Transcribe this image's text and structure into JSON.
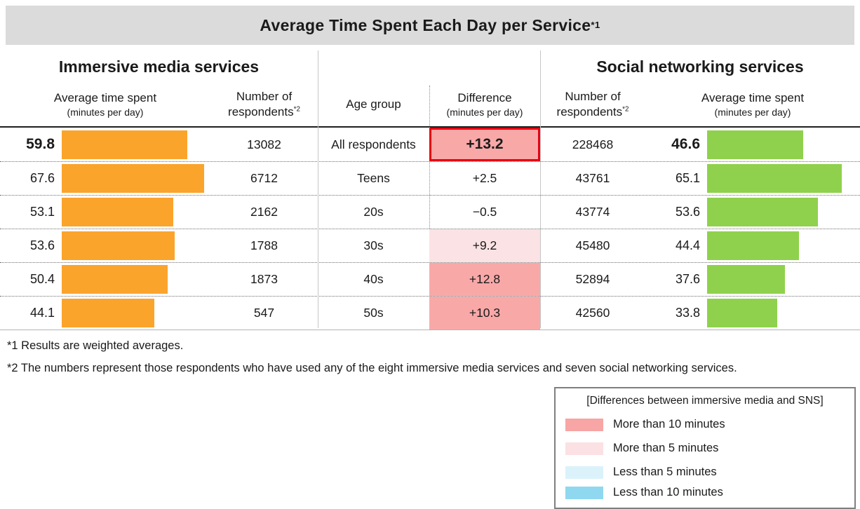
{
  "title": {
    "text": "Average Time Spent Each Day per Service",
    "superscript": "*1"
  },
  "colors": {
    "title_bar_bg": "#DBDBDB",
    "immersive_bar": "#FBA42C",
    "sns_bar": "#8FD14C",
    "diff_strong_bg": "#F9A8A8",
    "diff_light_bg": "#FBE2E4",
    "highlight_border": "#E60012"
  },
  "table": {
    "left_group_title": "Immersive media services",
    "right_group_title": "Social networking services",
    "headers": {
      "immersive_time": {
        "line1": "Average time spent",
        "line2": "(minutes per day)"
      },
      "immersive_respondents": {
        "line1": "Number of",
        "line2": "respondents",
        "sup": "*2"
      },
      "age_group": "Age group",
      "difference": {
        "line1": "Difference",
        "line2": "(minutes per day)"
      },
      "sns_respondents": {
        "line1": "Number of",
        "line2": "respondents",
        "sup": "*2"
      },
      "sns_time": {
        "line1": "Average time spent",
        "line2": "(minutes per day)"
      }
    },
    "rows": [
      {
        "age": "All respondents",
        "immersive_time": "59.8",
        "immersive_respondents": "13082",
        "difference": "+13.2",
        "difference_level": "strong",
        "difference_highlighted": true,
        "sns_respondents": "228468",
        "sns_time": "46.6",
        "emphasis": true
      },
      {
        "age": "Teens",
        "immersive_time": "67.6",
        "immersive_respondents": "6712",
        "difference": "+2.5",
        "difference_level": "none",
        "difference_highlighted": false,
        "sns_respondents": "43761",
        "sns_time": "65.1",
        "emphasis": false
      },
      {
        "age": "20s",
        "immersive_time": "53.1",
        "immersive_respondents": "2162",
        "difference": "−0.5",
        "difference_level": "none",
        "difference_highlighted": false,
        "sns_respondents": "43774",
        "sns_time": "53.6",
        "emphasis": false
      },
      {
        "age": "30s",
        "immersive_time": "53.6",
        "immersive_respondents": "1788",
        "difference": "+9.2",
        "difference_level": "light",
        "difference_highlighted": false,
        "sns_respondents": "45480",
        "sns_time": "44.4",
        "emphasis": false
      },
      {
        "age": "40s",
        "immersive_time": "50.4",
        "immersive_respondents": "1873",
        "difference": "+12.8",
        "difference_level": "strong",
        "difference_highlighted": false,
        "sns_respondents": "52894",
        "sns_time": "37.6",
        "emphasis": false
      },
      {
        "age": "50s",
        "immersive_time": "44.1",
        "immersive_respondents": "547",
        "difference": "+10.3",
        "difference_level": "strong",
        "difference_highlighted": false,
        "sns_respondents": "42560",
        "sns_time": "33.8",
        "emphasis": false
      }
    ]
  },
  "footnotes": [
    "*1 Results are weighted averages.",
    "*2 The numbers represent those respondents who have used any of the eight immersive media services and seven social networking services."
  ],
  "legend": {
    "title": "[Differences between immersive media and SNS]",
    "items": [
      {
        "label": "More than 10 minutes",
        "color": "#F7A5A5"
      },
      {
        "label": "More than 5 minutes",
        "color": "#FBE1E4"
      },
      {
        "label": "Less than 5 minutes",
        "color": "#DBF2FB"
      },
      {
        "label": "Less than 10 minutes",
        "color": "#8FD8EF"
      }
    ]
  },
  "chart_data": {
    "type": "bar",
    "title": "Average Time Spent Each Day per Service (weighted averages)",
    "categories": [
      "All respondents",
      "Teens",
      "20s",
      "30s",
      "40s",
      "50s"
    ],
    "series": [
      {
        "name": "Immersive media services – Average time spent (minutes per day)",
        "values": [
          59.8,
          67.6,
          53.1,
          53.6,
          50.4,
          44.1
        ]
      },
      {
        "name": "Immersive media services – Number of respondents",
        "values": [
          13082,
          6712,
          2162,
          1788,
          1873,
          547
        ]
      },
      {
        "name": "Difference (minutes per day)",
        "values": [
          13.2,
          2.5,
          -0.5,
          9.2,
          12.8,
          10.3
        ]
      },
      {
        "name": "Social networking services – Number of respondents",
        "values": [
          228468,
          43761,
          43774,
          45480,
          52894,
          42560
        ]
      },
      {
        "name": "Social networking services – Average time spent (minutes per day)",
        "values": [
          46.6,
          65.1,
          53.6,
          44.4,
          37.6,
          33.8
        ]
      }
    ],
    "layout": "paired horizontal bars, immersive bars grow right from left column, SNS bars grow right from right column, scale ≈ 3px per minute",
    "legend_position": "bottom-right"
  }
}
